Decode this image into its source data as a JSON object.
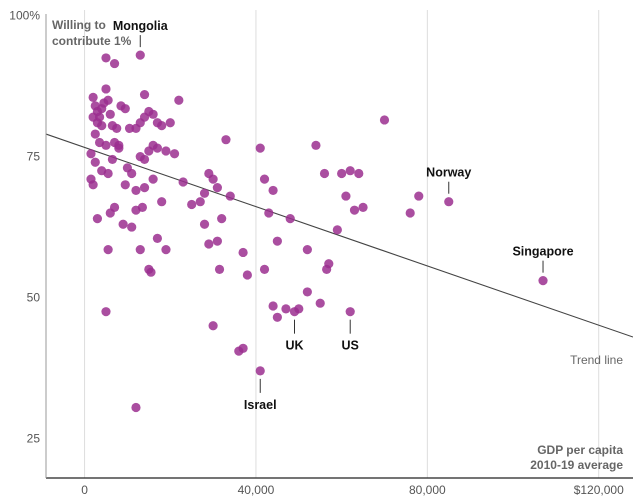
{
  "chart_data": {
    "type": "scatter",
    "ylabel_lines": [
      "Willing to",
      "contribute 1%"
    ],
    "xlabel_lines": [
      "GDP per capita",
      "2010-19 average"
    ],
    "xlim": [
      -9000,
      128000
    ],
    "ylim": [
      18,
      101
    ],
    "x_ticks": [
      {
        "value": 0,
        "label": "0"
      },
      {
        "value": 40000,
        "label": "40,000"
      },
      {
        "value": 80000,
        "label": "80,000"
      },
      {
        "value": 120000,
        "label": "$120,000"
      }
    ],
    "y_ticks": [
      {
        "value": 25,
        "label": "25"
      },
      {
        "value": 50,
        "label": "50"
      },
      {
        "value": 75,
        "label": "75"
      },
      {
        "value": 100,
        "label": "100%"
      }
    ],
    "grid": "vertical",
    "point_color": "#9b2f8f",
    "trend_line": {
      "label": "Trend line",
      "x": [
        -9000,
        128000
      ],
      "y": [
        79,
        43
      ],
      "color": "#444444"
    },
    "points": [
      [
        5000,
        92.5
      ],
      [
        7000,
        91.5
      ],
      [
        13000,
        93
      ],
      [
        2000,
        85.5
      ],
      [
        2500,
        84
      ],
      [
        3000,
        83
      ],
      [
        3500,
        82
      ],
      [
        4000,
        83.5
      ],
      [
        4500,
        84.5
      ],
      [
        5000,
        87
      ],
      [
        5500,
        85
      ],
      [
        6000,
        82.5
      ],
      [
        2000,
        82
      ],
      [
        3000,
        81
      ],
      [
        4000,
        80.5
      ],
      [
        6500,
        80.5
      ],
      [
        7500,
        80
      ],
      [
        8500,
        84
      ],
      [
        9500,
        83.5
      ],
      [
        10500,
        80
      ],
      [
        2500,
        79
      ],
      [
        3500,
        77.5
      ],
      [
        5000,
        77
      ],
      [
        7000,
        77.5
      ],
      [
        8000,
        76.5
      ],
      [
        12000,
        80
      ],
      [
        13000,
        81
      ],
      [
        14000,
        82
      ],
      [
        16000,
        82.5
      ],
      [
        17000,
        81
      ],
      [
        18000,
        80.5
      ],
      [
        20000,
        81
      ],
      [
        22000,
        85
      ],
      [
        14000,
        86
      ],
      [
        15000,
        83
      ],
      [
        1500,
        75.5
      ],
      [
        2500,
        74
      ],
      [
        4000,
        72.5
      ],
      [
        5500,
        72
      ],
      [
        6500,
        74.5
      ],
      [
        8000,
        77
      ],
      [
        10000,
        73
      ],
      [
        11000,
        72
      ],
      [
        13000,
        75
      ],
      [
        14000,
        74.5
      ],
      [
        15000,
        76
      ],
      [
        16000,
        77
      ],
      [
        17000,
        76.5
      ],
      [
        19000,
        76
      ],
      [
        21000,
        75.5
      ],
      [
        1500,
        71
      ],
      [
        2000,
        70
      ],
      [
        9500,
        70
      ],
      [
        12000,
        69
      ],
      [
        14000,
        69.5
      ],
      [
        16000,
        71
      ],
      [
        18000,
        67
      ],
      [
        23000,
        70.5
      ],
      [
        25000,
        66.5
      ],
      [
        27000,
        67
      ],
      [
        28000,
        68.5
      ],
      [
        29000,
        72
      ],
      [
        30000,
        71
      ],
      [
        31000,
        69.5
      ],
      [
        32000,
        64
      ],
      [
        34000,
        68
      ],
      [
        33000,
        78
      ],
      [
        3000,
        64
      ],
      [
        6000,
        65
      ],
      [
        7000,
        66
      ],
      [
        9000,
        63
      ],
      [
        11000,
        62.5
      ],
      [
        12000,
        65.5
      ],
      [
        13500,
        66
      ],
      [
        17000,
        60.5
      ],
      [
        19000,
        58.5
      ],
      [
        5500,
        58.5
      ],
      [
        13000,
        58.5
      ],
      [
        15000,
        55
      ],
      [
        15500,
        54.5
      ],
      [
        28000,
        63
      ],
      [
        29000,
        59.5
      ],
      [
        31000,
        60
      ],
      [
        31500,
        55
      ],
      [
        37000,
        58
      ],
      [
        38000,
        54
      ],
      [
        41000,
        76.5
      ],
      [
        42000,
        71
      ],
      [
        44000,
        69
      ],
      [
        43000,
        65
      ],
      [
        48000,
        64
      ],
      [
        45000,
        60
      ],
      [
        47000,
        48
      ],
      [
        52000,
        58.5
      ],
      [
        54000,
        77
      ],
      [
        56000,
        72
      ],
      [
        57000,
        56
      ],
      [
        56500,
        55
      ],
      [
        59000,
        62
      ],
      [
        60000,
        72
      ],
      [
        61000,
        68
      ],
      [
        62000,
        72.5
      ],
      [
        64000,
        72
      ],
      [
        63000,
        65.5
      ],
      [
        65000,
        66
      ],
      [
        70000,
        81.5
      ],
      [
        76000,
        65
      ],
      [
        78000,
        68
      ],
      [
        42000,
        55
      ],
      [
        44000,
        48.5
      ],
      [
        45000,
        46.5
      ],
      [
        50000,
        48
      ],
      [
        52000,
        51
      ],
      [
        55000,
        49
      ],
      [
        36000,
        40.5
      ],
      [
        37000,
        41
      ],
      [
        30000,
        45
      ],
      [
        5000,
        47.5
      ],
      [
        41000,
        37
      ],
      [
        49000,
        47.5
      ],
      [
        62000,
        47.5
      ],
      [
        85000,
        67
      ],
      [
        107000,
        53
      ],
      [
        12000,
        30.5
      ]
    ],
    "annotations": [
      {
        "label": "Mongolia",
        "x": 13000,
        "y": 93
      },
      {
        "label": "Norway",
        "x": 85000,
        "y": 67
      },
      {
        "label": "Singapore",
        "x": 107000,
        "y": 53
      },
      {
        "label": "UK",
        "x": 49000,
        "y": 47.5
      },
      {
        "label": "US",
        "x": 62000,
        "y": 47.5
      },
      {
        "label": "Israel",
        "x": 41000,
        "y": 37
      }
    ]
  }
}
